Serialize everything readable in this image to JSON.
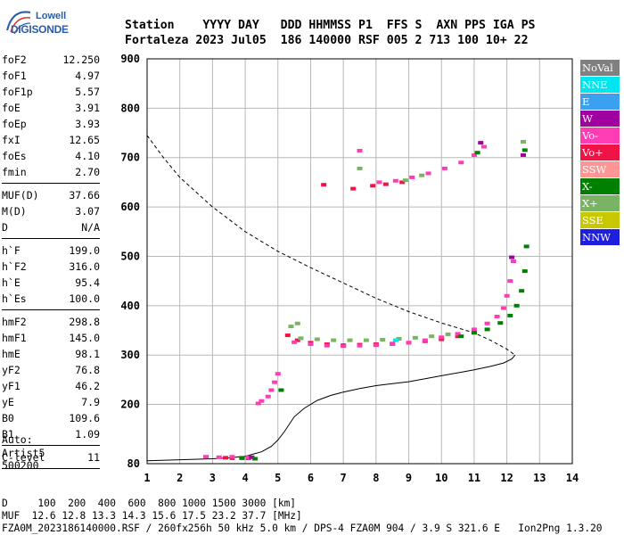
{
  "logo": {
    "line1": "Lowell",
    "line2": "DIGISONDE"
  },
  "header": {
    "row1": [
      "Station",
      "YYYY",
      "DAY",
      "DDD",
      "HHMMSS",
      "P1",
      "FFS",
      "S",
      "AXN",
      "PPS",
      "IGA",
      "PS"
    ],
    "row2": [
      "Fortaleza",
      "2023",
      "Jul05",
      "186",
      "140000",
      "RSF",
      "005",
      "2",
      "713",
      "100",
      "10+",
      "22"
    ],
    "line1": "Station    YYYY DAY   DDD HHMMSS P1  FFS S  AXN PPS IGA PS",
    "line2": "Fortaleza 2023 Jul05  186 140000 RSF 005 2 713 100 10+ 22"
  },
  "params_group1": [
    {
      "key": "foF2",
      "value": "12.250"
    },
    {
      "key": "foF1",
      "value": "4.97"
    },
    {
      "key": "foF1p",
      "value": "5.57"
    },
    {
      "key": "foE",
      "value": "3.91"
    },
    {
      "key": "foEp",
      "value": "3.93"
    },
    {
      "key": "fxI",
      "value": "12.65"
    },
    {
      "key": "foEs",
      "value": "4.10"
    },
    {
      "key": "fmin",
      "value": "2.70"
    }
  ],
  "params_group2": [
    {
      "key": "MUF(D)",
      "value": "37.66"
    },
    {
      "key": "M(D)",
      "value": "3.07"
    },
    {
      "key": "D",
      "value": "N/A"
    }
  ],
  "params_group3": [
    {
      "key": "h`F",
      "value": "199.0"
    },
    {
      "key": "h`F2",
      "value": "316.0"
    },
    {
      "key": "h`E",
      "value": "95.4"
    },
    {
      "key": "h`Es",
      "value": "100.0"
    }
  ],
  "params_group4": [
    {
      "key": "hmF2",
      "value": "298.8"
    },
    {
      "key": "hmF1",
      "value": "145.0"
    },
    {
      "key": "hmE",
      "value": "98.1"
    },
    {
      "key": "yF2",
      "value": "76.8"
    },
    {
      "key": "yF1",
      "value": "46.2"
    },
    {
      "key": "yE",
      "value": "7.9"
    },
    {
      "key": "B0",
      "value": "109.6"
    },
    {
      "key": "B1",
      "value": "1.09"
    }
  ],
  "params_group5": [
    {
      "key": "C-level",
      "value": "11"
    }
  ],
  "auto": {
    "line1": "Auto:",
    "line2": "Artist5",
    "line3": "500200"
  },
  "footer": {
    "line1": "D     100  200  400  600  800 1000 1500 3000 [km]",
    "line2": "MUF  12.6 12.8 13.3 14.3 15.6 17.5 23.2 37.7 [MHz]",
    "line3": "FZA0M_2023186140000.RSF / 260fx256h 50 kHz 5.0 km / DPS-4 FZA0M 904 / 3.9 S 321.6 E   Ion2Png 1.3.20"
  },
  "legend": [
    {
      "label": "NoVal",
      "bg": "#808080",
      "fg": "#ffffff"
    },
    {
      "label": "NNE",
      "bg": "#00e6f0",
      "fg": "#ffffff"
    },
    {
      "label": "E",
      "bg": "#3ca0f0",
      "fg": "#ffffff"
    },
    {
      "label": "W",
      "bg": "#a000a0",
      "fg": "#ffffff"
    },
    {
      "label": "Vo-",
      "bg": "#ff3cb4",
      "fg": "#ffffff"
    },
    {
      "label": "Vo+",
      "bg": "#f01446",
      "fg": "#ffffff"
    },
    {
      "label": "SSW",
      "bg": "#ff9696",
      "fg": "#ffffff"
    },
    {
      "label": "X-",
      "bg": "#008000",
      "fg": "#ffffff"
    },
    {
      "label": "X+",
      "bg": "#78b464",
      "fg": "#ffffff"
    },
    {
      "label": "SSE",
      "bg": "#c8c800",
      "fg": "#ffffff"
    },
    {
      "label": "NNW",
      "bg": "#1e1edc",
      "fg": "#ffffff"
    }
  ],
  "chart_data": {
    "type": "scatter",
    "xlim": [
      1,
      14
    ],
    "ylim": [
      80,
      900
    ],
    "x_ticks": [
      1,
      2,
      3,
      4,
      5,
      6,
      7,
      8,
      9,
      10,
      11,
      12,
      13,
      14
    ],
    "y_ticks": [
      80,
      200,
      300,
      400,
      500,
      600,
      700,
      800,
      900
    ],
    "grid": true,
    "series": [
      {
        "name": "Vo+",
        "color": "#f01446",
        "points": [
          [
            3.4,
            92
          ],
          [
            3.6,
            91
          ],
          [
            3.9,
            92
          ],
          [
            4.1,
            91
          ],
          [
            5.3,
            340
          ],
          [
            5.6,
            330
          ],
          [
            6.0,
            325
          ],
          [
            6.5,
            322
          ],
          [
            7.0,
            320
          ],
          [
            7.5,
            321
          ],
          [
            8.0,
            322
          ],
          [
            8.5,
            323
          ],
          [
            9.0,
            325
          ],
          [
            9.5,
            328
          ],
          [
            10.0,
            332
          ],
          [
            10.5,
            338
          ],
          [
            11.0,
            346
          ],
          [
            7.9,
            643
          ],
          [
            8.3,
            646
          ],
          [
            8.8,
            650
          ],
          [
            6.4,
            645
          ],
          [
            7.3,
            637
          ]
        ]
      },
      {
        "name": "Vo-",
        "color": "#ff3cb4",
        "points": [
          [
            2.8,
            94
          ],
          [
            3.2,
            93
          ],
          [
            3.6,
            94
          ],
          [
            4.1,
            93
          ],
          [
            4.4,
            202
          ],
          [
            4.5,
            207
          ],
          [
            4.7,
            216
          ],
          [
            4.8,
            229
          ],
          [
            4.9,
            245
          ],
          [
            5.0,
            262
          ],
          [
            5.5,
            326
          ],
          [
            6.0,
            322
          ],
          [
            6.5,
            319
          ],
          [
            7.0,
            318
          ],
          [
            7.5,
            319
          ],
          [
            8.0,
            320
          ],
          [
            8.5,
            322
          ],
          [
            9.0,
            325
          ],
          [
            9.5,
            330
          ],
          [
            10.0,
            336
          ],
          [
            10.5,
            343
          ],
          [
            11.0,
            352
          ],
          [
            11.4,
            364
          ],
          [
            11.7,
            378
          ],
          [
            11.9,
            395
          ],
          [
            12.0,
            420
          ],
          [
            12.1,
            450
          ],
          [
            12.2,
            490
          ],
          [
            8.1,
            650
          ],
          [
            8.6,
            653
          ],
          [
            9.1,
            660
          ],
          [
            9.6,
            668
          ],
          [
            10.1,
            678
          ],
          [
            10.6,
            690
          ],
          [
            11.0,
            705
          ],
          [
            11.3,
            722
          ],
          [
            7.5,
            714
          ]
        ]
      },
      {
        "name": "W",
        "color": "#a000a0",
        "points": [
          [
            4.2,
            93
          ],
          [
            12.5,
            705
          ],
          [
            11.2,
            730
          ],
          [
            12.15,
            498
          ]
        ]
      },
      {
        "name": "X-",
        "color": "#008000",
        "points": [
          [
            3.9,
            91
          ],
          [
            4.3,
            90
          ],
          [
            5.1,
            229
          ],
          [
            10.6,
            338
          ],
          [
            11.0,
            345
          ],
          [
            11.4,
            352
          ],
          [
            11.8,
            365
          ],
          [
            12.1,
            380
          ],
          [
            12.3,
            400
          ],
          [
            12.45,
            430
          ],
          [
            12.55,
            470
          ],
          [
            12.6,
            520
          ],
          [
            11.1,
            710
          ],
          [
            12.55,
            715
          ]
        ]
      },
      {
        "name": "X+",
        "color": "#78b464",
        "points": [
          [
            5.4,
            358
          ],
          [
            5.6,
            364
          ],
          [
            5.7,
            334
          ],
          [
            6.2,
            332
          ],
          [
            6.7,
            330
          ],
          [
            7.2,
            330
          ],
          [
            7.7,
            330
          ],
          [
            8.2,
            331
          ],
          [
            8.7,
            333
          ],
          [
            9.2,
            335
          ],
          [
            9.7,
            338
          ],
          [
            10.2,
            342
          ],
          [
            8.9,
            654
          ],
          [
            9.4,
            664
          ],
          [
            12.5,
            732
          ],
          [
            7.5,
            678
          ]
        ]
      },
      {
        "name": "NNE",
        "color": "#00e6f0",
        "points": [
          [
            8.6,
            330
          ]
        ]
      }
    ],
    "curves": [
      {
        "style": "dashed",
        "points": [
          [
            1.0,
            745
          ],
          [
            1.5,
            700
          ],
          [
            2.0,
            660
          ],
          [
            3.0,
            600
          ],
          [
            4.0,
            550
          ],
          [
            5.0,
            510
          ],
          [
            6.0,
            477
          ],
          [
            7.0,
            446
          ],
          [
            8.0,
            415
          ],
          [
            9.0,
            388
          ],
          [
            10.0,
            365
          ],
          [
            11.0,
            345
          ],
          [
            11.5,
            330
          ],
          [
            12.0,
            312
          ],
          [
            12.25,
            300
          ]
        ]
      },
      {
        "style": "solid",
        "points": [
          [
            1.0,
            86
          ],
          [
            2.0,
            88
          ],
          [
            3.0,
            90
          ],
          [
            3.5,
            92
          ],
          [
            4.0,
            95
          ],
          [
            4.5,
            104
          ],
          [
            4.8,
            115
          ],
          [
            5.0,
            128
          ],
          [
            5.2,
            145
          ],
          [
            5.5,
            175
          ],
          [
            5.8,
            192
          ],
          [
            6.2,
            208
          ],
          [
            6.6,
            218
          ],
          [
            7.0,
            225
          ],
          [
            7.5,
            232
          ],
          [
            8.0,
            238
          ],
          [
            8.5,
            242
          ],
          [
            9.0,
            246
          ],
          [
            9.5,
            252
          ],
          [
            10.0,
            258
          ],
          [
            10.5,
            264
          ],
          [
            11.0,
            270
          ],
          [
            11.5,
            277
          ],
          [
            11.9,
            284
          ],
          [
            12.15,
            292
          ],
          [
            12.25,
            300
          ]
        ]
      }
    ]
  }
}
